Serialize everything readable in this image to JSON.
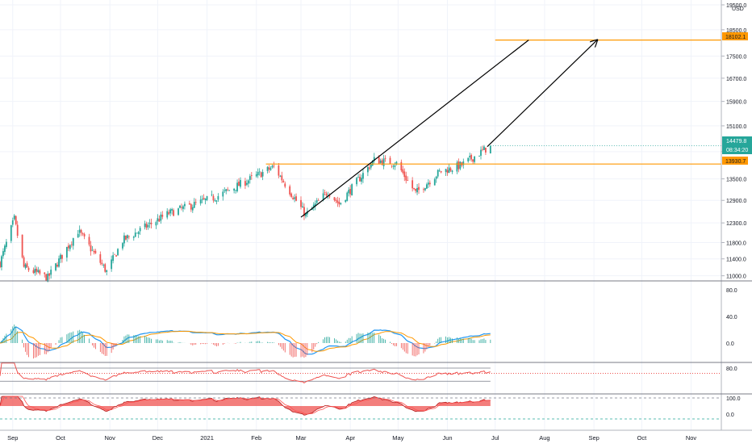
{
  "colors": {
    "background": "#ffffff",
    "grid": "#f0f3fa",
    "separator": "#787b86",
    "candle_up": "#26a69a",
    "candle_down": "#ef5350",
    "level_line": "#ff9800",
    "trend_line": "#000000",
    "last_price_bg": "#26a69a",
    "osc_blue": "#2196f3",
    "osc_orange": "#ff9800",
    "osc_red": "#ef5350",
    "osc_guide": "#787b86",
    "osc_teal": "#26a69a"
  },
  "price_axis": {
    "currency": "USD",
    "ticks": [
      "19500.0",
      "18500.0",
      "17500.0",
      "16700.0",
      "15900.0",
      "15100.0",
      "14300.0",
      "13500.0",
      "12900.0",
      "12300.0",
      "11800.0",
      "11400.0",
      "11000.0"
    ],
    "log_scale": true
  },
  "price_labels": {
    "target": "18102.1",
    "last_price": "14479.8",
    "countdown": "08:34:20",
    "support": "13930.7"
  },
  "osc1_axis": {
    "ticks": [
      "80.0",
      "40.0",
      "0.0"
    ]
  },
  "osc2_axis": {
    "ticks": [
      "80.0"
    ]
  },
  "osc3_axis": {
    "ticks": [
      "100.0",
      "0.0"
    ]
  },
  "time_axis": {
    "labels": [
      "Sep",
      "Oct",
      "Nov",
      "Dec",
      "2021",
      "Feb",
      "Mar",
      "Apr",
      "May",
      "Jun",
      "Jul",
      "Aug",
      "Sep",
      "Oct",
      "Nov"
    ]
  },
  "chart_data": {
    "type": "candlestick",
    "price_scale": "log",
    "ylim": [
      10900,
      19500
    ],
    "x_range": [
      "2020-08-24",
      "2021-11-20"
    ],
    "series": [
      {
        "type": "close",
        "x": "2020-08-24",
        "y": 11300
      },
      {
        "type": "close",
        "x": "2020-09-02",
        "y": 12400
      },
      {
        "type": "close",
        "x": "2020-09-08",
        "y": 11200
      },
      {
        "type": "close",
        "x": "2020-09-23",
        "y": 10950
      },
      {
        "type": "close",
        "x": "2020-10-12",
        "y": 12100
      },
      {
        "type": "close",
        "x": "2020-10-30",
        "y": 11100
      },
      {
        "type": "close",
        "x": "2020-11-09",
        "y": 11850
      },
      {
        "type": "close",
        "x": "2020-12-08",
        "y": 12550
      },
      {
        "type": "close",
        "x": "2021-01-07",
        "y": 13000
      },
      {
        "type": "close",
        "x": "2021-02-12",
        "y": 13850
      },
      {
        "type": "close",
        "x": "2021-03-04",
        "y": 12500
      },
      {
        "type": "close",
        "x": "2021-03-18",
        "y": 13150
      },
      {
        "type": "close",
        "x": "2021-03-25",
        "y": 12800
      },
      {
        "type": "close",
        "x": "2021-04-16",
        "y": 14050
      },
      {
        "type": "close",
        "x": "2021-04-30",
        "y": 13950
      },
      {
        "type": "close",
        "x": "2021-05-12",
        "y": 13100
      },
      {
        "type": "close",
        "x": "2021-05-27",
        "y": 13700
      },
      {
        "type": "close",
        "x": "2021-06-10",
        "y": 13900
      },
      {
        "type": "close",
        "x": "2021-06-28",
        "y": 14479.8
      }
    ],
    "horizontal_levels": [
      {
        "price": 18102.1,
        "from": "2021-07-01",
        "to": "2021-11-20"
      },
      {
        "price": 13930.7,
        "from": "2021-02-07",
        "to": "2021-11-20"
      }
    ],
    "trend_lines": [
      {
        "from": [
          "2021-03-01",
          12450
        ],
        "to": [
          "2021-07-22",
          18102.1
        ],
        "arrow": false
      },
      {
        "from": [
          "2021-06-26",
          14450
        ],
        "to": [
          "2021-09-03",
          18102.1
        ],
        "arrow": true
      }
    ]
  }
}
